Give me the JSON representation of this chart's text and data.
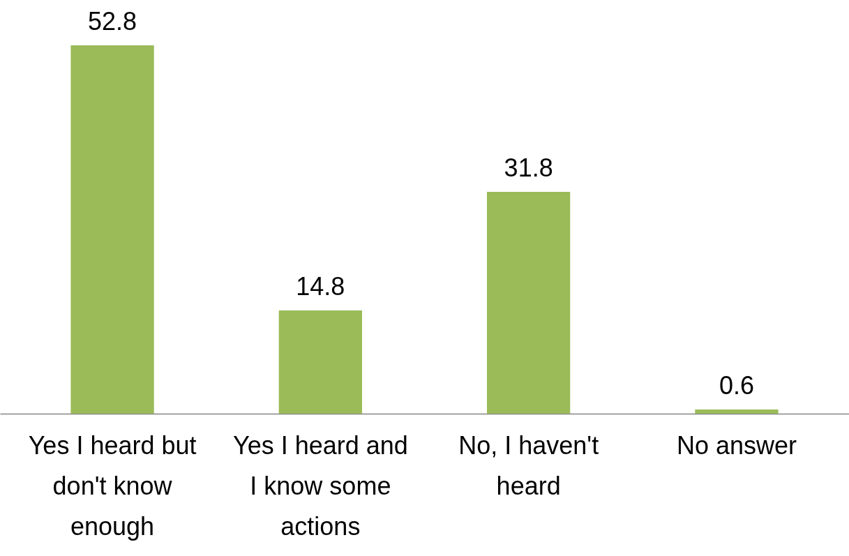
{
  "chart_data": {
    "type": "bar",
    "categories": [
      "Yes I heard but don't know enough",
      "Yes I heard and I know some actions",
      "No, I haven't heard",
      "No answer"
    ],
    "values": [
      52.8,
      14.8,
      31.8,
      0.6
    ],
    "color": "#9bbb59",
    "data_labels": true
  }
}
